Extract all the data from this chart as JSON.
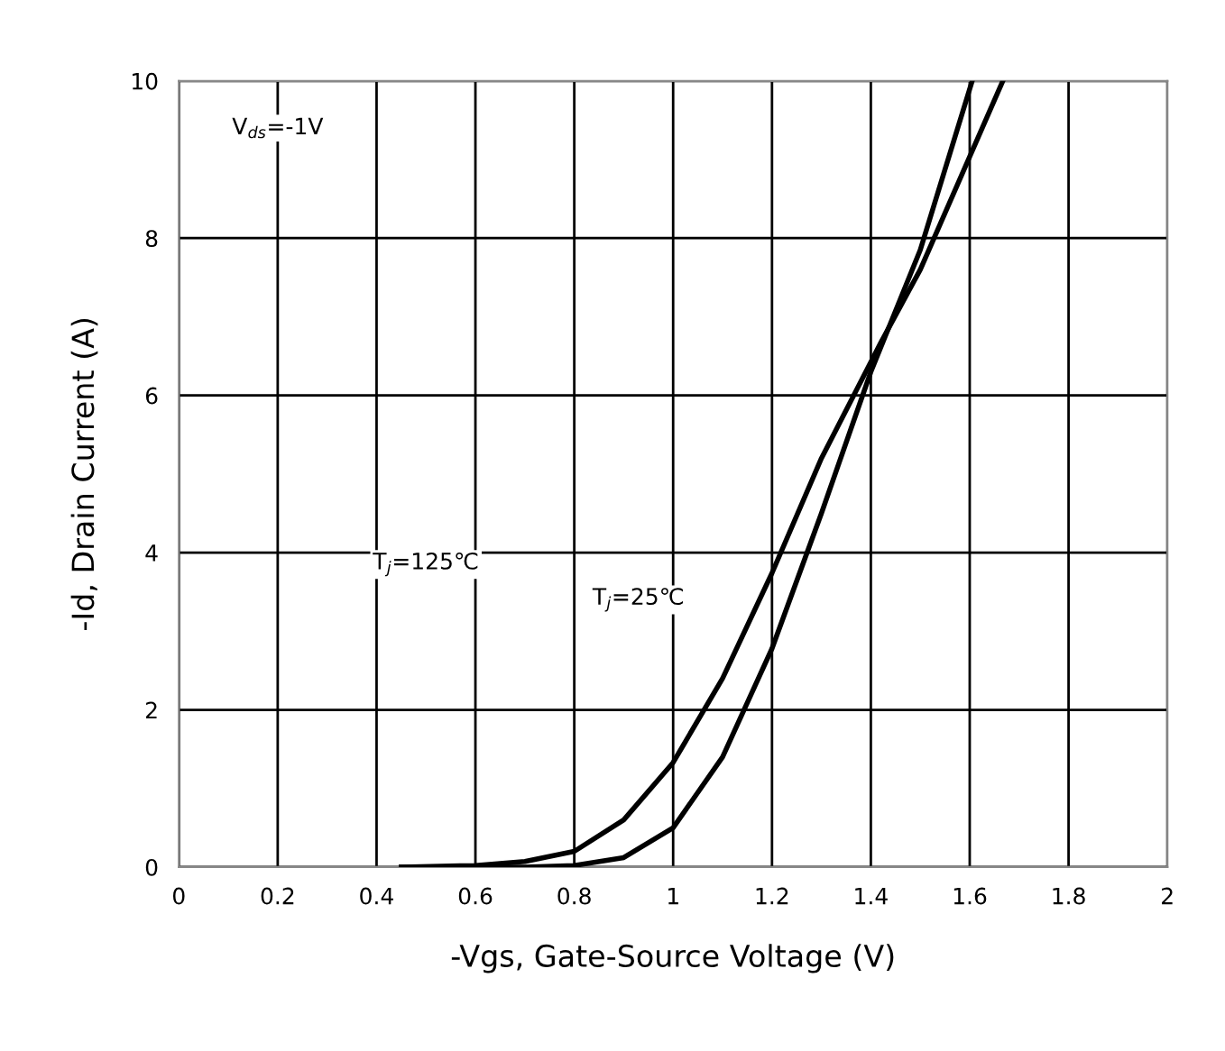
{
  "chart_data": {
    "type": "line",
    "xlabel": "-Vgs, Gate-Source Voltage (V)",
    "ylabel": "-Id, Drain Current (A)",
    "xlim": [
      0,
      2
    ],
    "xticks": [
      0,
      0.2,
      0.4,
      0.6,
      0.8,
      1,
      1.2,
      1.4,
      1.6,
      1.8,
      2
    ],
    "ylim": [
      0,
      10
    ],
    "yticks": [
      0,
      2,
      4,
      6,
      8,
      10
    ],
    "grid": true,
    "legend": false,
    "marker": "none",
    "line_style": "solid",
    "series": [
      {
        "color": "#000000",
        "x": [
          0.45,
          0.6,
          0.7,
          0.8,
          0.9,
          1.0,
          1.1,
          1.2,
          1.3,
          1.42,
          1.5,
          1.667
        ],
        "values": [
          0,
          0.02,
          0.07,
          0.2,
          0.6,
          1.33,
          2.4,
          3.74,
          5.2,
          6.67,
          7.6,
          10
        ]
      },
      {
        "color": "#000000",
        "x": [
          0.45,
          0.7,
          0.8,
          0.9,
          1.0,
          1.1,
          1.2,
          1.3,
          1.4,
          1.5,
          1.605
        ],
        "values": [
          0,
          0,
          0.02,
          0.12,
          0.5,
          1.4,
          2.78,
          4.5,
          6.3,
          7.85,
          10
        ]
      }
    ],
    "annotations": [
      "V$_{ds}$=-1V",
      "T$_{j}$=125℃",
      "T$_{j}$=25℃"
    ]
  }
}
